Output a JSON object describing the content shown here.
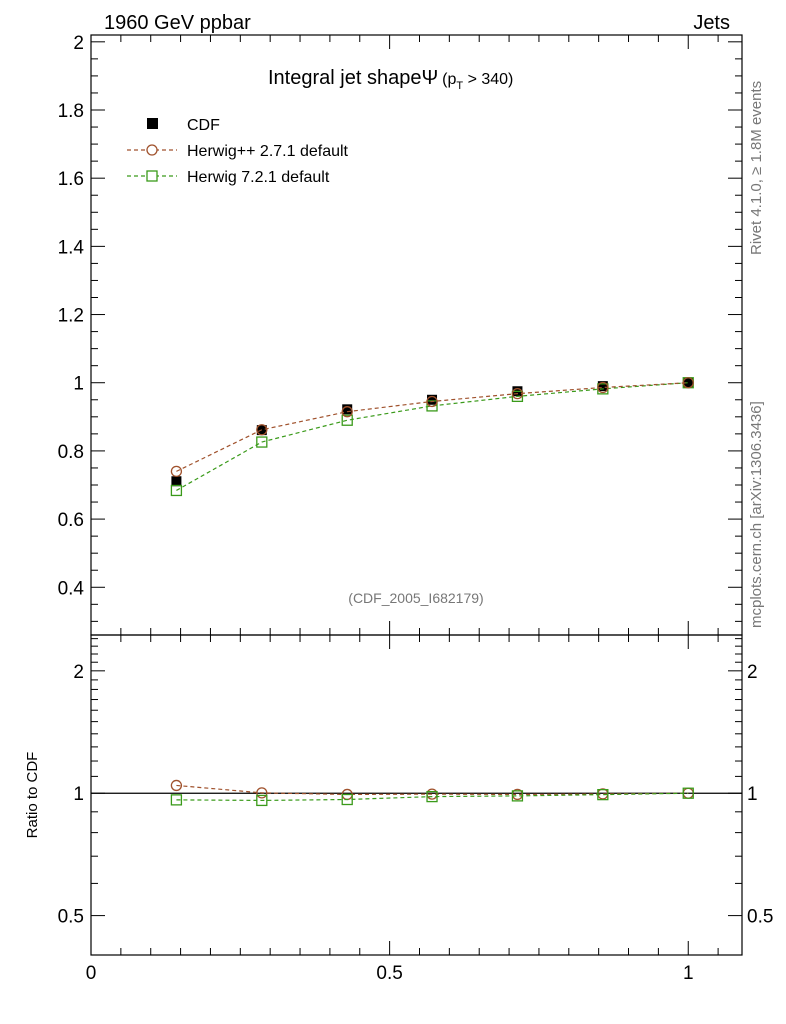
{
  "header": {
    "left": "1960 GeV ppbar",
    "right": "Jets"
  },
  "side_text": {
    "top": "Rivet 4.1.0, ≥ 1.8M events",
    "bottom": "mcplots.cern.ch [arXiv:1306.3436]"
  },
  "watermark": "(CDF_2005_I682179)",
  "colors": {
    "data": "#000000",
    "herwigpp": "#a0522d",
    "herwig7": "#3a9a1a"
  },
  "chart_data": {
    "type": "line",
    "title": "Integral jet shapeΨ",
    "title_extra": {
      "open": "(p",
      "sub": "T",
      "close": " > 340)"
    },
    "xlim": [
      0,
      1.09
    ],
    "x_ticks": [
      0,
      0.5,
      1
    ],
    "x_tick_labels": [
      "0",
      "0.5",
      "1"
    ],
    "main": {
      "ylim": [
        0.26,
        2.02
      ],
      "y_ticks": [
        0.4,
        0.6,
        0.8,
        1,
        1.2,
        1.4,
        1.6,
        1.8,
        2
      ],
      "y_tick_labels": [
        "0.4",
        "0.6",
        "0.8",
        "1",
        "1.2",
        "1.4",
        "1.6",
        "1.8",
        "2"
      ]
    },
    "ratio": {
      "ylabel": "Ratio to CDF",
      "ylim": [
        0.4,
        2.45
      ],
      "y_ticks": [
        0.5,
        1,
        2
      ],
      "y_tick_labels": [
        "0.5",
        "1",
        "2"
      ],
      "reference": 1
    },
    "x": [
      0.143,
      0.286,
      0.429,
      0.571,
      0.714,
      0.857,
      1.0
    ],
    "series": [
      {
        "name": "CDF",
        "style": "data",
        "values": [
          0.711,
          0.861,
          0.922,
          0.95,
          0.975,
          0.99,
          1.0
        ]
      },
      {
        "name": "Herwig++ 2.7.1 default",
        "style": "herwigpp",
        "values": [
          0.74,
          0.862,
          0.915,
          0.945,
          0.968,
          0.986,
          1.0
        ]
      },
      {
        "name": "Herwig 7.2.1 default",
        "style": "herwig7",
        "values": [
          0.684,
          0.826,
          0.89,
          0.932,
          0.96,
          0.982,
          1.0
        ]
      }
    ],
    "ratio_series": [
      {
        "name": "Herwig++ 2.7.1 default",
        "style": "herwigpp",
        "values": [
          1.045,
          1.002,
          0.993,
          0.995,
          0.993,
          0.996,
          1.0
        ]
      },
      {
        "name": "Herwig 7.2.1 default",
        "style": "herwig7",
        "values": [
          0.963,
          0.96,
          0.965,
          0.981,
          0.985,
          0.992,
          1.0
        ]
      }
    ]
  }
}
